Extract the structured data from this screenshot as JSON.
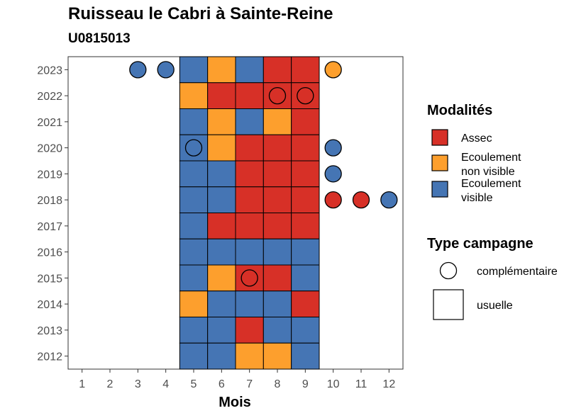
{
  "chart_data": {
    "type": "heatmap",
    "title": "Ruisseau le Cabri à Sainte-Reine",
    "subtitle": "U0815013",
    "xlabel": "Mois",
    "ylabel": "",
    "x_ticks": [
      "1",
      "2",
      "3",
      "4",
      "5",
      "6",
      "7",
      "8",
      "9",
      "10",
      "11",
      "12"
    ],
    "y_ticks": [
      "2012",
      "2013",
      "2014",
      "2015",
      "2016",
      "2017",
      "2018",
      "2019",
      "2020",
      "2021",
      "2022",
      "2023"
    ],
    "grid": false,
    "legend_position": "right",
    "colors": {
      "Assec": "#d73027",
      "Ecoulement non visible": "#fd9f2d",
      "Ecoulement visible": "#4575b4"
    },
    "legend": {
      "modalites_title": "Modalités",
      "modalites": [
        {
          "key": "Assec",
          "lines": [
            "Assec"
          ]
        },
        {
          "key": "Ecoulement non visible",
          "lines": [
            "Ecoulement",
            "non visible"
          ]
        },
        {
          "key": "Ecoulement visible",
          "lines": [
            "Ecoulement",
            "visible"
          ]
        }
      ],
      "type_title": "Type campagne",
      "types": [
        {
          "key": "complementaire",
          "label": "complémentaire"
        },
        {
          "key": "usuelle",
          "label": "usuelle"
        }
      ]
    },
    "usuelle": [
      {
        "year": "2023",
        "months": {
          "5": "Ecoulement visible",
          "6": "Ecoulement non visible",
          "7": "Ecoulement visible",
          "8": "Assec",
          "9": "Assec"
        }
      },
      {
        "year": "2022",
        "months": {
          "5": "Ecoulement non visible",
          "6": "Assec",
          "7": "Assec",
          "8": "Assec",
          "9": "Assec"
        }
      },
      {
        "year": "2021",
        "months": {
          "5": "Ecoulement visible",
          "6": "Ecoulement non visible",
          "7": "Ecoulement visible",
          "8": "Ecoulement non visible",
          "9": "Assec"
        }
      },
      {
        "year": "2020",
        "months": {
          "5": "Ecoulement visible",
          "6": "Ecoulement non visible",
          "7": "Assec",
          "8": "Assec",
          "9": "Assec"
        }
      },
      {
        "year": "2019",
        "months": {
          "5": "Ecoulement visible",
          "6": "Ecoulement visible",
          "7": "Assec",
          "8": "Assec",
          "9": "Assec"
        }
      },
      {
        "year": "2018",
        "months": {
          "5": "Ecoulement visible",
          "6": "Ecoulement visible",
          "7": "Assec",
          "8": "Assec",
          "9": "Assec"
        }
      },
      {
        "year": "2017",
        "months": {
          "5": "Ecoulement visible",
          "6": "Assec",
          "7": "Assec",
          "8": "Assec",
          "9": "Assec"
        }
      },
      {
        "year": "2016",
        "months": {
          "5": "Ecoulement visible",
          "6": "Ecoulement visible",
          "7": "Ecoulement visible",
          "8": "Ecoulement visible",
          "9": "Ecoulement visible"
        }
      },
      {
        "year": "2015",
        "months": {
          "5": "Ecoulement visible",
          "6": "Ecoulement non visible",
          "7": "Assec",
          "8": "Assec",
          "9": "Ecoulement visible"
        }
      },
      {
        "year": "2014",
        "months": {
          "5": "Ecoulement non visible",
          "6": "Ecoulement visible",
          "7": "Ecoulement visible",
          "8": "Ecoulement visible",
          "9": "Assec"
        }
      },
      {
        "year": "2013",
        "months": {
          "5": "Ecoulement visible",
          "6": "Ecoulement visible",
          "7": "Assec",
          "8": "Ecoulement visible",
          "9": "Ecoulement visible"
        }
      },
      {
        "year": "2012",
        "months": {
          "5": "Ecoulement visible",
          "6": "Ecoulement visible",
          "7": "Ecoulement non visible",
          "8": "Ecoulement non visible",
          "9": "Ecoulement visible"
        }
      }
    ],
    "complementaire": [
      {
        "year": "2023",
        "month": 3,
        "value": "Ecoulement visible"
      },
      {
        "year": "2023",
        "month": 4,
        "value": "Ecoulement visible"
      },
      {
        "year": "2023",
        "month": 10,
        "value": "Ecoulement non visible"
      },
      {
        "year": "2022",
        "month": 8,
        "value": "Assec"
      },
      {
        "year": "2022",
        "month": 9,
        "value": "Assec"
      },
      {
        "year": "2020",
        "month": 5,
        "value": "Ecoulement visible"
      },
      {
        "year": "2020",
        "month": 10,
        "value": "Ecoulement visible"
      },
      {
        "year": "2019",
        "month": 10,
        "value": "Ecoulement visible"
      },
      {
        "year": "2018",
        "month": 10,
        "value": "Assec"
      },
      {
        "year": "2018",
        "month": 11,
        "value": "Assec"
      },
      {
        "year": "2018",
        "month": 12,
        "value": "Ecoulement visible"
      },
      {
        "year": "2015",
        "month": 7,
        "value": "Assec"
      }
    ]
  }
}
